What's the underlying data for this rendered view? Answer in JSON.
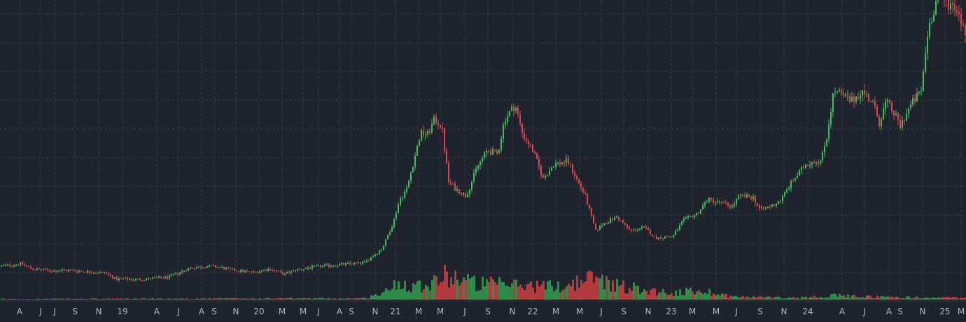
{
  "chart_data": {
    "type": "candlestick",
    "title": "",
    "xlabel": "",
    "ylabel": "",
    "grid": true,
    "colors": {
      "background": "#1f232d",
      "grid": "#363a45",
      "up": "#26a69a",
      "up_candle": "#3fbf5a",
      "down": "#e0454d",
      "volume_up": "#2e8b4a",
      "volume_down": "#b23a40",
      "axis_text": "#b2b5be"
    },
    "x_ticks": [
      "A",
      "J",
      "J",
      "S",
      "N",
      "19",
      "A",
      "J",
      "A",
      "S",
      "N",
      "20",
      "M",
      "M",
      "J",
      "A",
      "S",
      "N",
      "21",
      "M",
      "M",
      "J",
      "S",
      "N",
      "22",
      "M",
      "M",
      "J",
      "S",
      "N",
      "23",
      "M",
      "M",
      "J",
      "S",
      "N",
      "24",
      "A",
      "J",
      "A",
      "S",
      "N",
      "25",
      "M"
    ],
    "price_path": [
      {
        "x": 0,
        "close": 50
      },
      {
        "x": 30,
        "close": 53
      },
      {
        "x": 45,
        "close": 46
      },
      {
        "x": 75,
        "close": 43
      },
      {
        "x": 95,
        "close": 44
      },
      {
        "x": 150,
        "close": 40
      },
      {
        "x": 165,
        "close": 31
      },
      {
        "x": 200,
        "close": 31
      },
      {
        "x": 240,
        "close": 34
      },
      {
        "x": 270,
        "close": 47
      },
      {
        "x": 300,
        "close": 50
      },
      {
        "x": 335,
        "close": 44
      },
      {
        "x": 360,
        "close": 41
      },
      {
        "x": 385,
        "close": 46
      },
      {
        "x": 405,
        "close": 38
      },
      {
        "x": 420,
        "close": 44
      },
      {
        "x": 450,
        "close": 49
      },
      {
        "x": 485,
        "close": 52
      },
      {
        "x": 520,
        "close": 55
      },
      {
        "x": 545,
        "close": 75
      },
      {
        "x": 560,
        "close": 110
      },
      {
        "x": 570,
        "close": 145
      },
      {
        "x": 580,
        "close": 160
      },
      {
        "x": 590,
        "close": 200
      },
      {
        "x": 600,
        "close": 240
      },
      {
        "x": 610,
        "close": 238
      },
      {
        "x": 620,
        "close": 260
      },
      {
        "x": 630,
        "close": 250
      },
      {
        "x": 640,
        "close": 170
      },
      {
        "x": 650,
        "close": 160
      },
      {
        "x": 665,
        "close": 150
      },
      {
        "x": 680,
        "close": 190
      },
      {
        "x": 695,
        "close": 215
      },
      {
        "x": 710,
        "close": 210
      },
      {
        "x": 720,
        "close": 260
      },
      {
        "x": 735,
        "close": 280
      },
      {
        "x": 745,
        "close": 240
      },
      {
        "x": 760,
        "close": 215
      },
      {
        "x": 775,
        "close": 175
      },
      {
        "x": 790,
        "close": 195
      },
      {
        "x": 810,
        "close": 200
      },
      {
        "x": 820,
        "close": 180
      },
      {
        "x": 835,
        "close": 150
      },
      {
        "x": 850,
        "close": 100
      },
      {
        "x": 860,
        "close": 110
      },
      {
        "x": 880,
        "close": 120
      },
      {
        "x": 900,
        "close": 100
      },
      {
        "x": 920,
        "close": 105
      },
      {
        "x": 935,
        "close": 90
      },
      {
        "x": 960,
        "close": 92
      },
      {
        "x": 975,
        "close": 115
      },
      {
        "x": 995,
        "close": 125
      },
      {
        "x": 1010,
        "close": 145
      },
      {
        "x": 1030,
        "close": 140
      },
      {
        "x": 1045,
        "close": 135
      },
      {
        "x": 1055,
        "close": 150
      },
      {
        "x": 1075,
        "close": 148
      },
      {
        "x": 1085,
        "close": 130
      },
      {
        "x": 1100,
        "close": 135
      },
      {
        "x": 1115,
        "close": 145
      },
      {
        "x": 1130,
        "close": 170
      },
      {
        "x": 1150,
        "close": 195
      },
      {
        "x": 1160,
        "close": 200
      },
      {
        "x": 1172,
        "close": 200
      },
      {
        "x": 1180,
        "close": 235
      },
      {
        "x": 1190,
        "close": 300
      },
      {
        "x": 1200,
        "close": 295
      },
      {
        "x": 1215,
        "close": 285
      },
      {
        "x": 1230,
        "close": 300
      },
      {
        "x": 1245,
        "close": 285
      },
      {
        "x": 1255,
        "close": 255
      },
      {
        "x": 1265,
        "close": 285
      },
      {
        "x": 1275,
        "close": 270
      },
      {
        "x": 1285,
        "close": 250
      },
      {
        "x": 1300,
        "close": 280
      },
      {
        "x": 1315,
        "close": 300
      },
      {
        "x": 1325,
        "close": 390
      },
      {
        "x": 1340,
        "close": 440
      },
      {
        "x": 1355,
        "close": 425
      },
      {
        "x": 1365,
        "close": 420
      },
      {
        "x": 1380,
        "close": 380
      }
    ],
    "volume_path": [
      {
        "x": 0,
        "v": 1
      },
      {
        "x": 520,
        "v": 2
      },
      {
        "x": 550,
        "v": 12
      },
      {
        "x": 565,
        "v": 26
      },
      {
        "x": 600,
        "v": 22
      },
      {
        "x": 640,
        "v": 38
      },
      {
        "x": 680,
        "v": 24
      },
      {
        "x": 740,
        "v": 22
      },
      {
        "x": 800,
        "v": 20
      },
      {
        "x": 850,
        "v": 34
      },
      {
        "x": 880,
        "v": 22
      },
      {
        "x": 920,
        "v": 15
      },
      {
        "x": 960,
        "v": 10
      },
      {
        "x": 1000,
        "v": 14
      },
      {
        "x": 1050,
        "v": 4
      },
      {
        "x": 1140,
        "v": 3
      },
      {
        "x": 1190,
        "v": 6
      },
      {
        "x": 1260,
        "v": 4
      },
      {
        "x": 1320,
        "v": 3
      },
      {
        "x": 1380,
        "v": 3
      }
    ]
  }
}
